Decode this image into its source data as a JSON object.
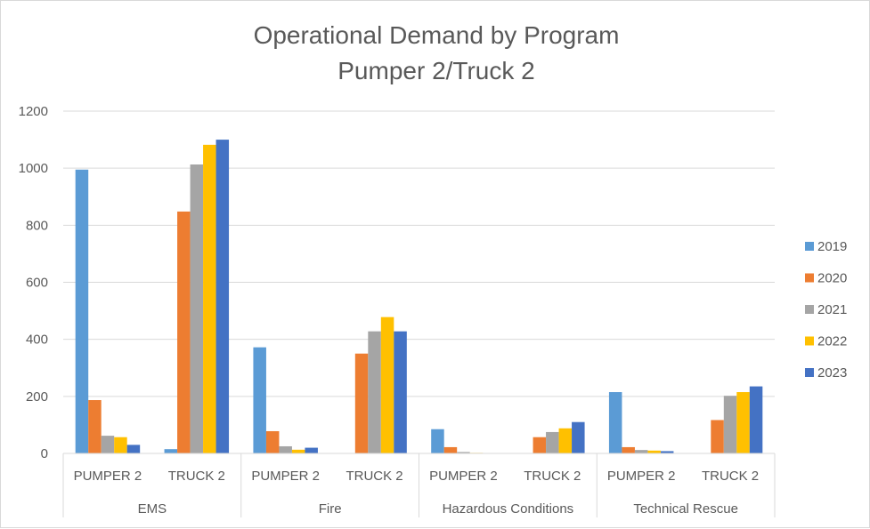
{
  "chart_data": {
    "type": "bar",
    "title": "Operational Demand by Program",
    "subtitle": "Pumper 2/Truck 2",
    "xlabel": "",
    "ylabel": "",
    "ylim": [
      0,
      1200
    ],
    "yticks": [
      0,
      200,
      400,
      600,
      800,
      1000,
      1200
    ],
    "grid": true,
    "legend_position": "right",
    "groups": [
      "EMS",
      "Fire",
      "Hazardous Conditions",
      "Technical Rescue"
    ],
    "subcategories": [
      "PUMPER 2",
      "TRUCK 2"
    ],
    "categories": [
      "EMS / PUMPER 2",
      "EMS / TRUCK 2",
      "Fire / PUMPER 2",
      "Fire / TRUCK 2",
      "Hazardous Conditions / PUMPER 2",
      "Hazardous Conditions / TRUCK 2",
      "Technical Rescue / PUMPER 2",
      "Technical Rescue / TRUCK 2"
    ],
    "series": [
      {
        "name": "2019",
        "color": "#5b9bd5",
        "values": [
          995,
          15,
          372,
          0,
          85,
          0,
          215,
          0
        ]
      },
      {
        "name": "2020",
        "color": "#ed7d31",
        "values": [
          187,
          848,
          78,
          350,
          22,
          57,
          22,
          117
        ]
      },
      {
        "name": "2021",
        "color": "#a5a5a5",
        "values": [
          62,
          1013,
          25,
          428,
          5,
          75,
          12,
          202
        ]
      },
      {
        "name": "2022",
        "color": "#ffc000",
        "values": [
          57,
          1082,
          13,
          478,
          2,
          88,
          10,
          215
        ]
      },
      {
        "name": "2023",
        "color": "#4472c4",
        "values": [
          30,
          1100,
          20,
          428,
          1,
          110,
          8,
          235
        ]
      }
    ]
  }
}
